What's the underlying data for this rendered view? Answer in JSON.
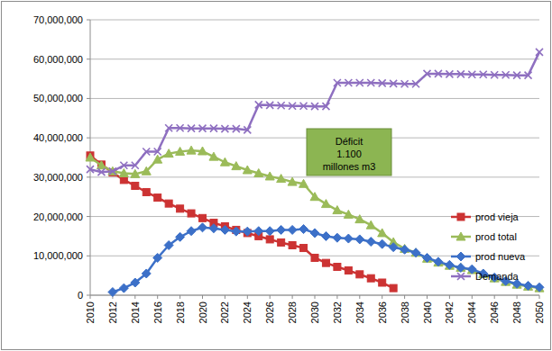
{
  "chart_data": {
    "type": "line",
    "x": [
      2010,
      2011,
      2012,
      2013,
      2014,
      2015,
      2016,
      2017,
      2018,
      2019,
      2020,
      2021,
      2022,
      2023,
      2024,
      2025,
      2026,
      2027,
      2028,
      2029,
      2030,
      2031,
      2032,
      2033,
      2034,
      2035,
      2036,
      2037,
      2038,
      2039,
      2040,
      2041,
      2042,
      2043,
      2044,
      2045,
      2046,
      2047,
      2048,
      2049,
      2050
    ],
    "xlim": [
      2010,
      2050
    ],
    "xticks": [
      2010,
      2012,
      2014,
      2016,
      2018,
      2020,
      2022,
      2024,
      2026,
      2028,
      2030,
      2032,
      2034,
      2036,
      2038,
      2040,
      2042,
      2044,
      2046,
      2048,
      2050
    ],
    "ylim": [
      0,
      70000000
    ],
    "yticks": [
      0,
      {
        "value": 10000000,
        "label": "10,000,000"
      },
      {
        "value": 20000000,
        "label": "20,000,000"
      },
      {
        "value": 30000000,
        "label": "30,000,000"
      },
      {
        "value": 40000000,
        "label": "40,000,000"
      },
      {
        "value": 50000000,
        "label": "50,000,000"
      },
      {
        "value": 60000000,
        "label": "60,000,000"
      },
      {
        "value": 70000000,
        "label": "70,000,000"
      }
    ],
    "grid": true,
    "legend": "right",
    "annotation": [
      "Déficit",
      "1.100",
      "millones m3"
    ],
    "series": [
      {
        "name": "prod vieja",
        "color": "#cc3333",
        "marker": "square",
        "values": [
          35500000,
          33200000,
          31200000,
          29300000,
          27800000,
          26200000,
          24800000,
          23300000,
          22000000,
          20800000,
          19600000,
          18400000,
          17500000,
          16600000,
          15800000,
          15000000,
          14200000,
          13400000,
          12700000,
          12000000,
          9500000,
          8200000,
          7200000,
          6300000,
          5300000,
          4300000,
          3200000,
          1800000,
          null,
          null,
          null,
          null,
          null,
          null,
          null,
          null,
          null,
          null,
          null,
          null,
          null
        ]
      },
      {
        "name": "prod total",
        "color": "#9bbb59",
        "marker": "triangle",
        "values": [
          35000000,
          33000000,
          31500000,
          31000000,
          30800000,
          31500000,
          34500000,
          36000000,
          36500000,
          36800000,
          36600000,
          35200000,
          33800000,
          32800000,
          31800000,
          31000000,
          30200000,
          29600000,
          28800000,
          28300000,
          25000000,
          23200000,
          21600000,
          20500000,
          19300000,
          17800000,
          15800000,
          13500000,
          11800000,
          10800000,
          9300000,
          8300000,
          7500000,
          7000000,
          6400000,
          5400000,
          4300000,
          3400000,
          2700000,
          2200000,
          1800000
        ]
      },
      {
        "name": "prod nueva",
        "color": "#3c70c8",
        "marker": "diamond",
        "values": [
          null,
          null,
          800000,
          1800000,
          3200000,
          5500000,
          9500000,
          12700000,
          14800000,
          16300000,
          17200000,
          17000000,
          16600000,
          16200000,
          16200000,
          16300000,
          16300000,
          16600000,
          16600000,
          16800000,
          15800000,
          15000000,
          14600000,
          14400000,
          14200000,
          13600000,
          13000000,
          12200000,
          11600000,
          10800000,
          9500000,
          8500000,
          7700000,
          7000000,
          6600000,
          5500000,
          4500000,
          3600000,
          2900000,
          2400000,
          2000000
        ]
      },
      {
        "name": "Demanda",
        "color": "#8e6fc0",
        "marker": "x",
        "values": [
          32000000,
          31300000,
          31500000,
          33000000,
          33000000,
          36500000,
          36500000,
          42500000,
          42500000,
          42400000,
          42400000,
          42400000,
          42300000,
          42300000,
          42000000,
          48400000,
          48300000,
          48200000,
          48100000,
          48100000,
          48000000,
          48000000,
          54000000,
          54000000,
          54000000,
          54000000,
          53900000,
          53800000,
          53700000,
          53700000,
          56300000,
          56300000,
          56200000,
          56200000,
          56100000,
          56100000,
          56000000,
          56000000,
          55900000,
          55900000,
          61800000
        ]
      }
    ]
  }
}
